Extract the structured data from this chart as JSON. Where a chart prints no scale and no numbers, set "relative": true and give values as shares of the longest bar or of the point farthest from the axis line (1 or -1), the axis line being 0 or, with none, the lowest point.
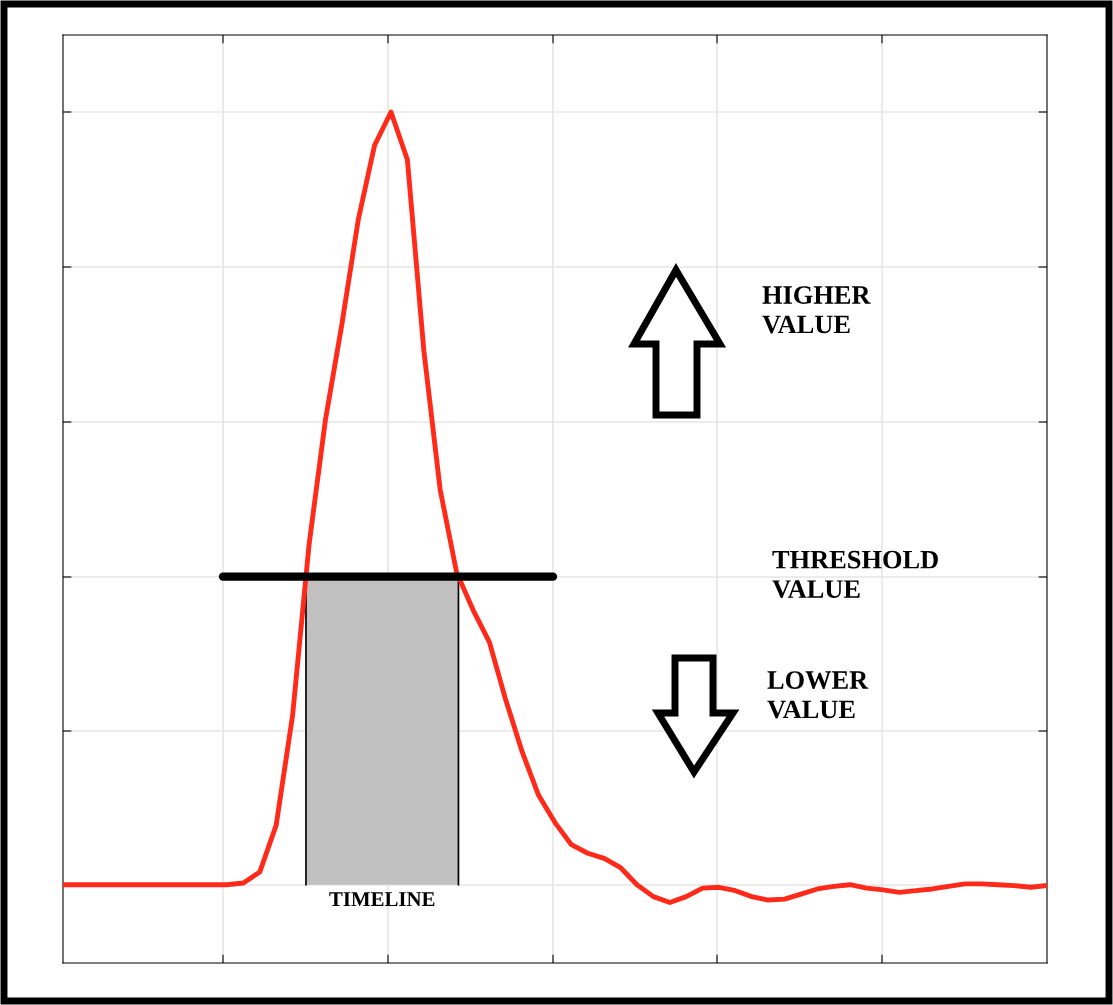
{
  "chart_data": {
    "type": "line",
    "relative": true,
    "grid": true,
    "tick_labels": false,
    "categories": [
      null,
      null,
      null,
      null,
      null,
      null,
      null,
      null,
      null,
      null,
      null,
      null,
      null,
      null,
      null,
      null,
      null,
      null,
      null,
      null,
      null,
      null,
      null,
      null,
      null,
      null,
      null,
      null,
      null,
      null,
      null,
      null,
      null,
      null,
      null,
      null,
      null,
      null,
      null,
      null,
      null,
      null,
      null,
      null,
      null,
      null,
      null,
      null,
      null,
      null,
      null,
      null,
      null,
      null,
      null,
      null,
      null,
      null,
      null,
      null,
      null
    ],
    "series": [
      {
        "color": "#ff2a1a",
        "values": [
          0.092,
          0.092,
          0.092,
          0.092,
          0.092,
          0.092,
          0.092,
          0.092,
          0.092,
          0.092,
          0.092,
          0.094,
          0.107,
          0.162,
          0.291,
          0.491,
          0.638,
          0.75,
          0.873,
          0.961,
          1.0,
          0.944,
          0.72,
          0.556,
          0.459,
          0.415,
          0.377,
          0.309,
          0.248,
          0.197,
          0.165,
          0.139,
          0.129,
          0.123,
          0.112,
          0.092,
          0.078,
          0.071,
          0.078,
          0.088,
          0.089,
          0.085,
          0.078,
          0.074,
          0.075,
          0.081,
          0.087,
          0.09,
          0.092,
          0.088,
          0.086,
          0.083,
          0.085,
          0.087,
          0.09,
          0.093,
          0.093,
          0.092,
          0.091,
          0.089,
          0.091
        ]
      }
    ],
    "ref_lines": [
      {
        "axis": "y",
        "value": 0.454,
        "label": "THRESHOLD\nVALUE",
        "color": "#000000"
      }
    ],
    "bands": [
      {
        "axis": "y",
        "from": 0.092,
        "to": 0.454,
        "label": "TIMELINE",
        "color": "#c0c0c0"
      }
    ],
    "annotations": [
      "HIGHER\nVALUE",
      "LOWER\nVALUE"
    ]
  }
}
